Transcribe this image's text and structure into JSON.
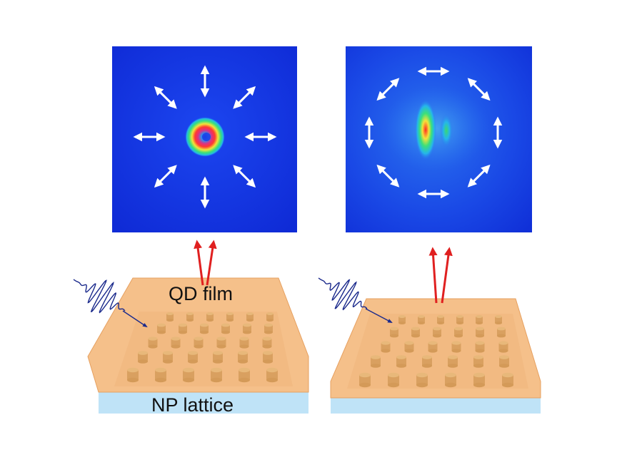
{
  "labels": {
    "qd_film": "QD film",
    "np_lattice": "NP lattice"
  },
  "panels": [
    {
      "name": "left-emission-image",
      "pattern": "doughnut",
      "arrow_arrangement": "radial"
    },
    {
      "name": "right-emission-image",
      "pattern": "double-lobe",
      "arrow_arrangement": "azimuthal"
    }
  ],
  "colors": {
    "image_background": "#1436e8",
    "film": "#f5c08a",
    "film_edge": "#e6a060",
    "pillar": "#d9a060",
    "substrate": "#bfe3f7",
    "emission_arrow": "#e02020",
    "pump_wave": "#1b2a8c",
    "polarization_arrow": "#ffffff"
  }
}
